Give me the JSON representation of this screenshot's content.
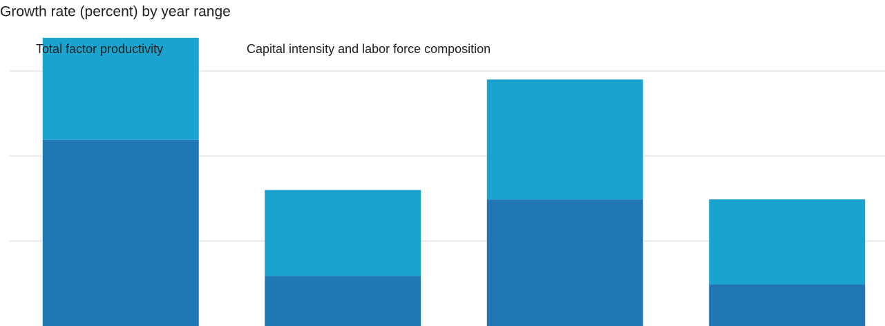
{
  "chart_data": {
    "type": "stacked_bar",
    "title": "Growth rate (percent) by year range",
    "categories": [
      null,
      null,
      null,
      null
    ],
    "series": [
      {
        "name": "Total factor productivity",
        "color": "#2077b4",
        "values": [
          2.19,
          0.59,
          1.49,
          0.49
        ]
      },
      {
        "name": "Capital intensity and labor force composition",
        "color": "#1ba3cf",
        "values": [
          1.2,
          1.01,
          1.41,
          1.0
        ]
      }
    ],
    "ylim": [
      0,
      3
    ],
    "yticks": [
      1,
      2,
      3
    ],
    "grid": true
  }
}
